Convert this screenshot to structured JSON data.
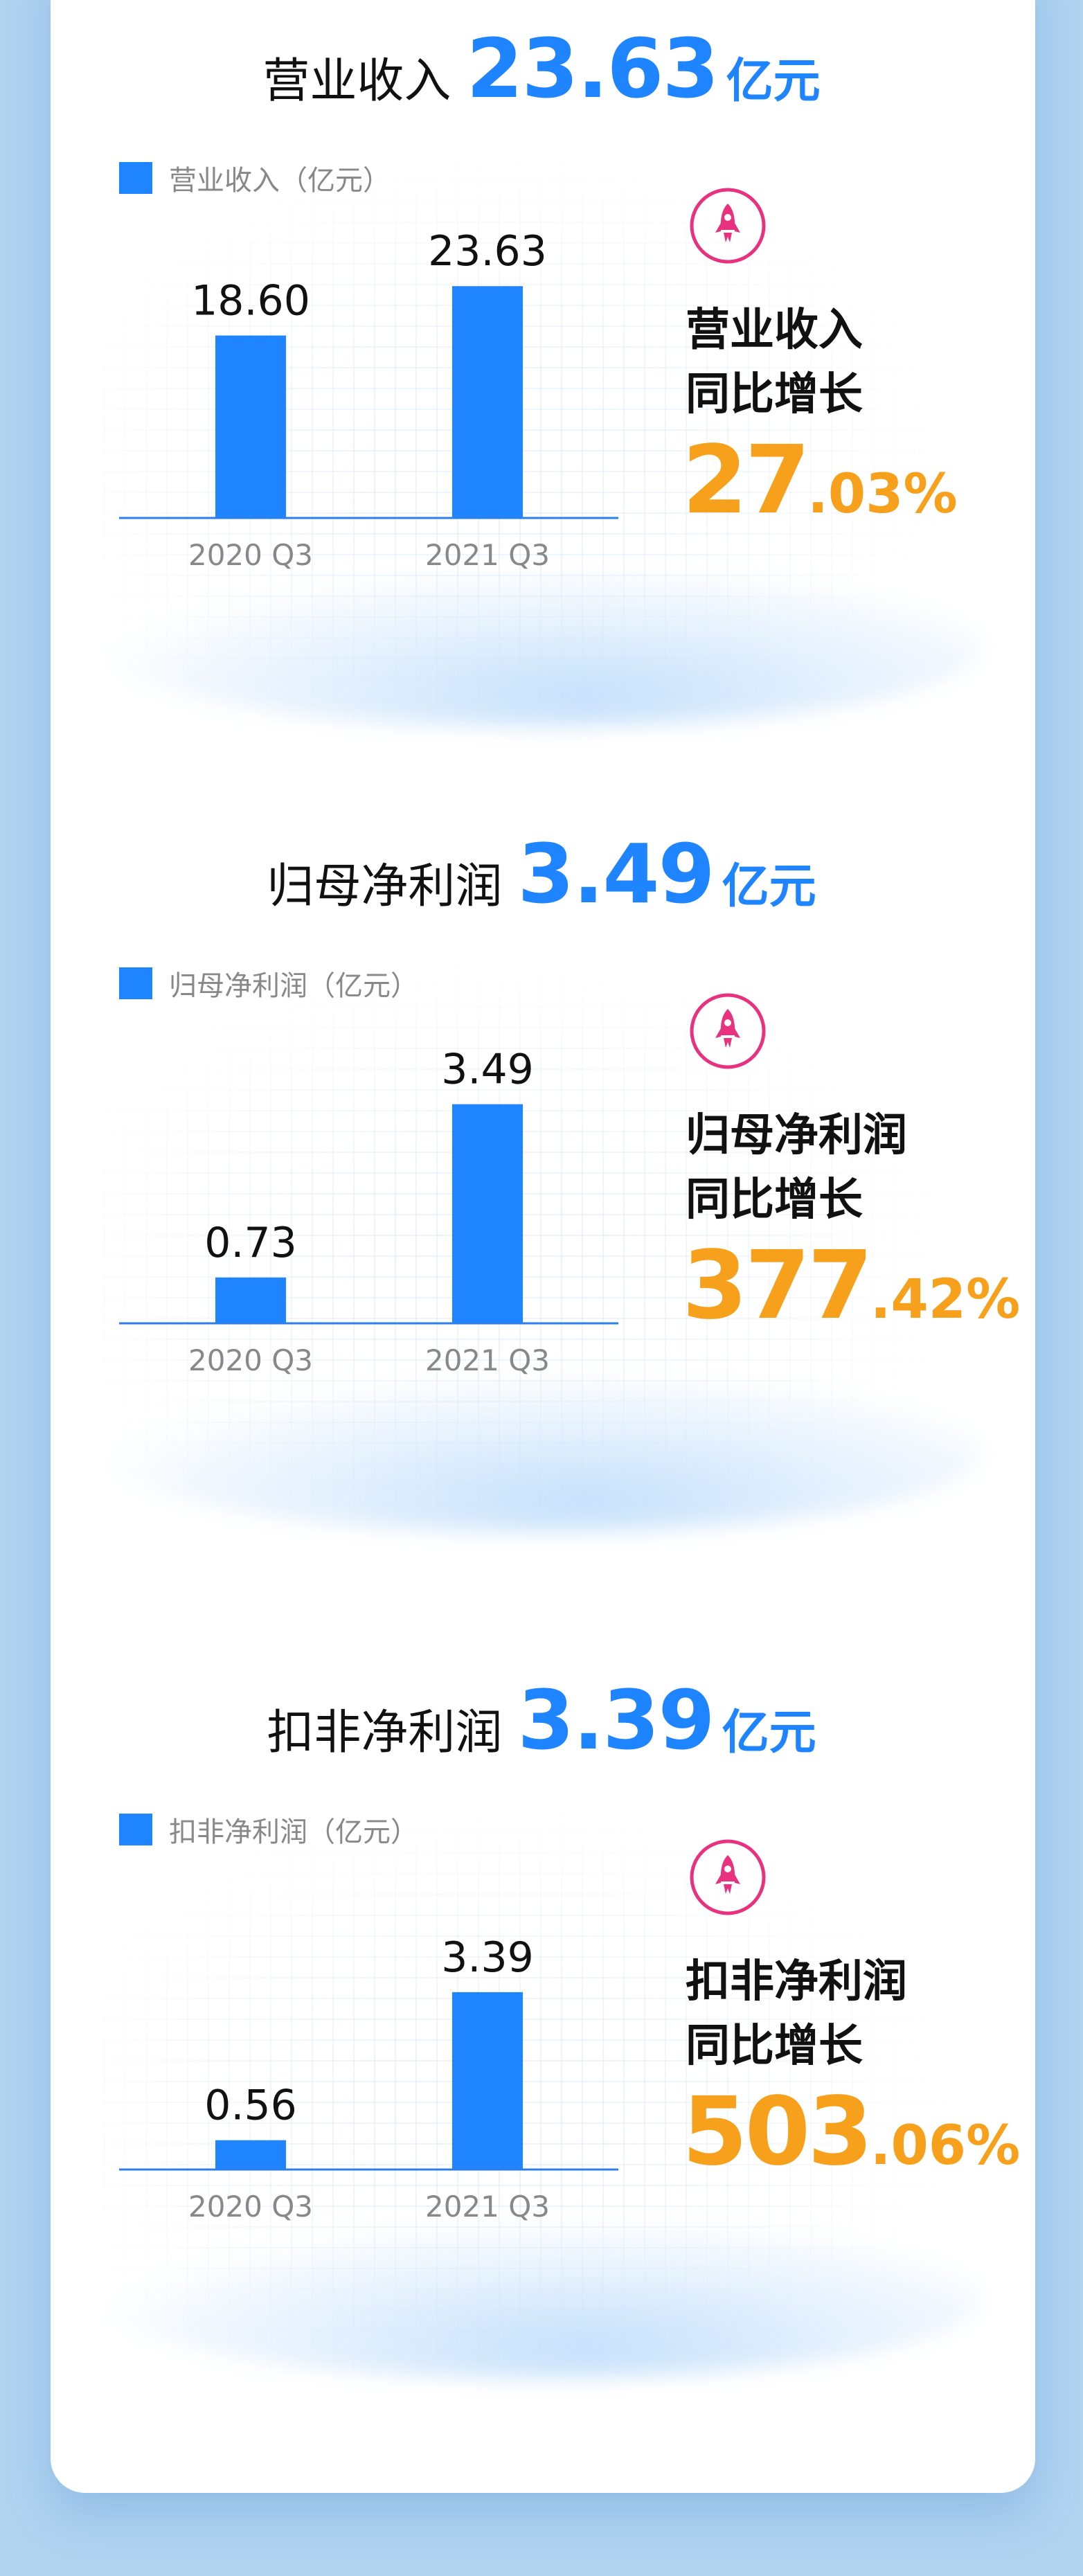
{
  "colors": {
    "bar": "#1f84ff",
    "accent_orange": "#f7a01c",
    "rocket": "#e8317f",
    "background": "#b0d3f0"
  },
  "sections": [
    {
      "title": "营业收入",
      "value": "23.63",
      "unit": "亿元",
      "legend": "营业收入（亿元）",
      "growth_label_1": "营业收入",
      "growth_label_2": "同比增长",
      "growth_int": "27",
      "growth_dec": ".03%",
      "icon": "rocket-icon"
    },
    {
      "title": "归母净利润",
      "value": "3.49",
      "unit": "亿元",
      "legend": "归母净利润（亿元）",
      "growth_label_1": "归母净利润",
      "growth_label_2": "同比增长",
      "growth_int": "377",
      "growth_dec": ".42%",
      "icon": "rocket-icon"
    },
    {
      "title": "扣非净利润",
      "value": "3.39",
      "unit": "亿元",
      "legend": "扣非净利润（亿元）",
      "growth_label_1": "扣非净利润",
      "growth_label_2": "同比增长",
      "growth_int": "503",
      "growth_dec": ".06%",
      "icon": "rocket-icon"
    }
  ],
  "chart_data": [
    {
      "type": "bar",
      "categories": [
        "2020 Q3",
        "2021 Q3"
      ],
      "series": [
        {
          "name": "营业收入（亿元）",
          "values": [
            18.6,
            23.63
          ]
        }
      ],
      "data_labels": [
        "18.60",
        "23.63"
      ],
      "ylim": [
        0,
        24
      ],
      "grid": false,
      "legend": "top-left"
    },
    {
      "type": "bar",
      "categories": [
        "2020 Q3",
        "2021 Q3"
      ],
      "series": [
        {
          "name": "归母净利润（亿元）",
          "values": [
            0.73,
            3.49
          ]
        }
      ],
      "data_labels": [
        "0.73",
        "3.49"
      ],
      "ylim": [
        0,
        3.75
      ],
      "grid": false,
      "legend": "top-left"
    },
    {
      "type": "bar",
      "categories": [
        "2020 Q3",
        "2021 Q3"
      ],
      "series": [
        {
          "name": "扣非净利润（亿元）",
          "values": [
            0.56,
            3.39
          ]
        }
      ],
      "data_labels": [
        "0.56",
        "3.39"
      ],
      "ylim": [
        0,
        4.5
      ],
      "grid": false,
      "legend": "top-left"
    }
  ]
}
